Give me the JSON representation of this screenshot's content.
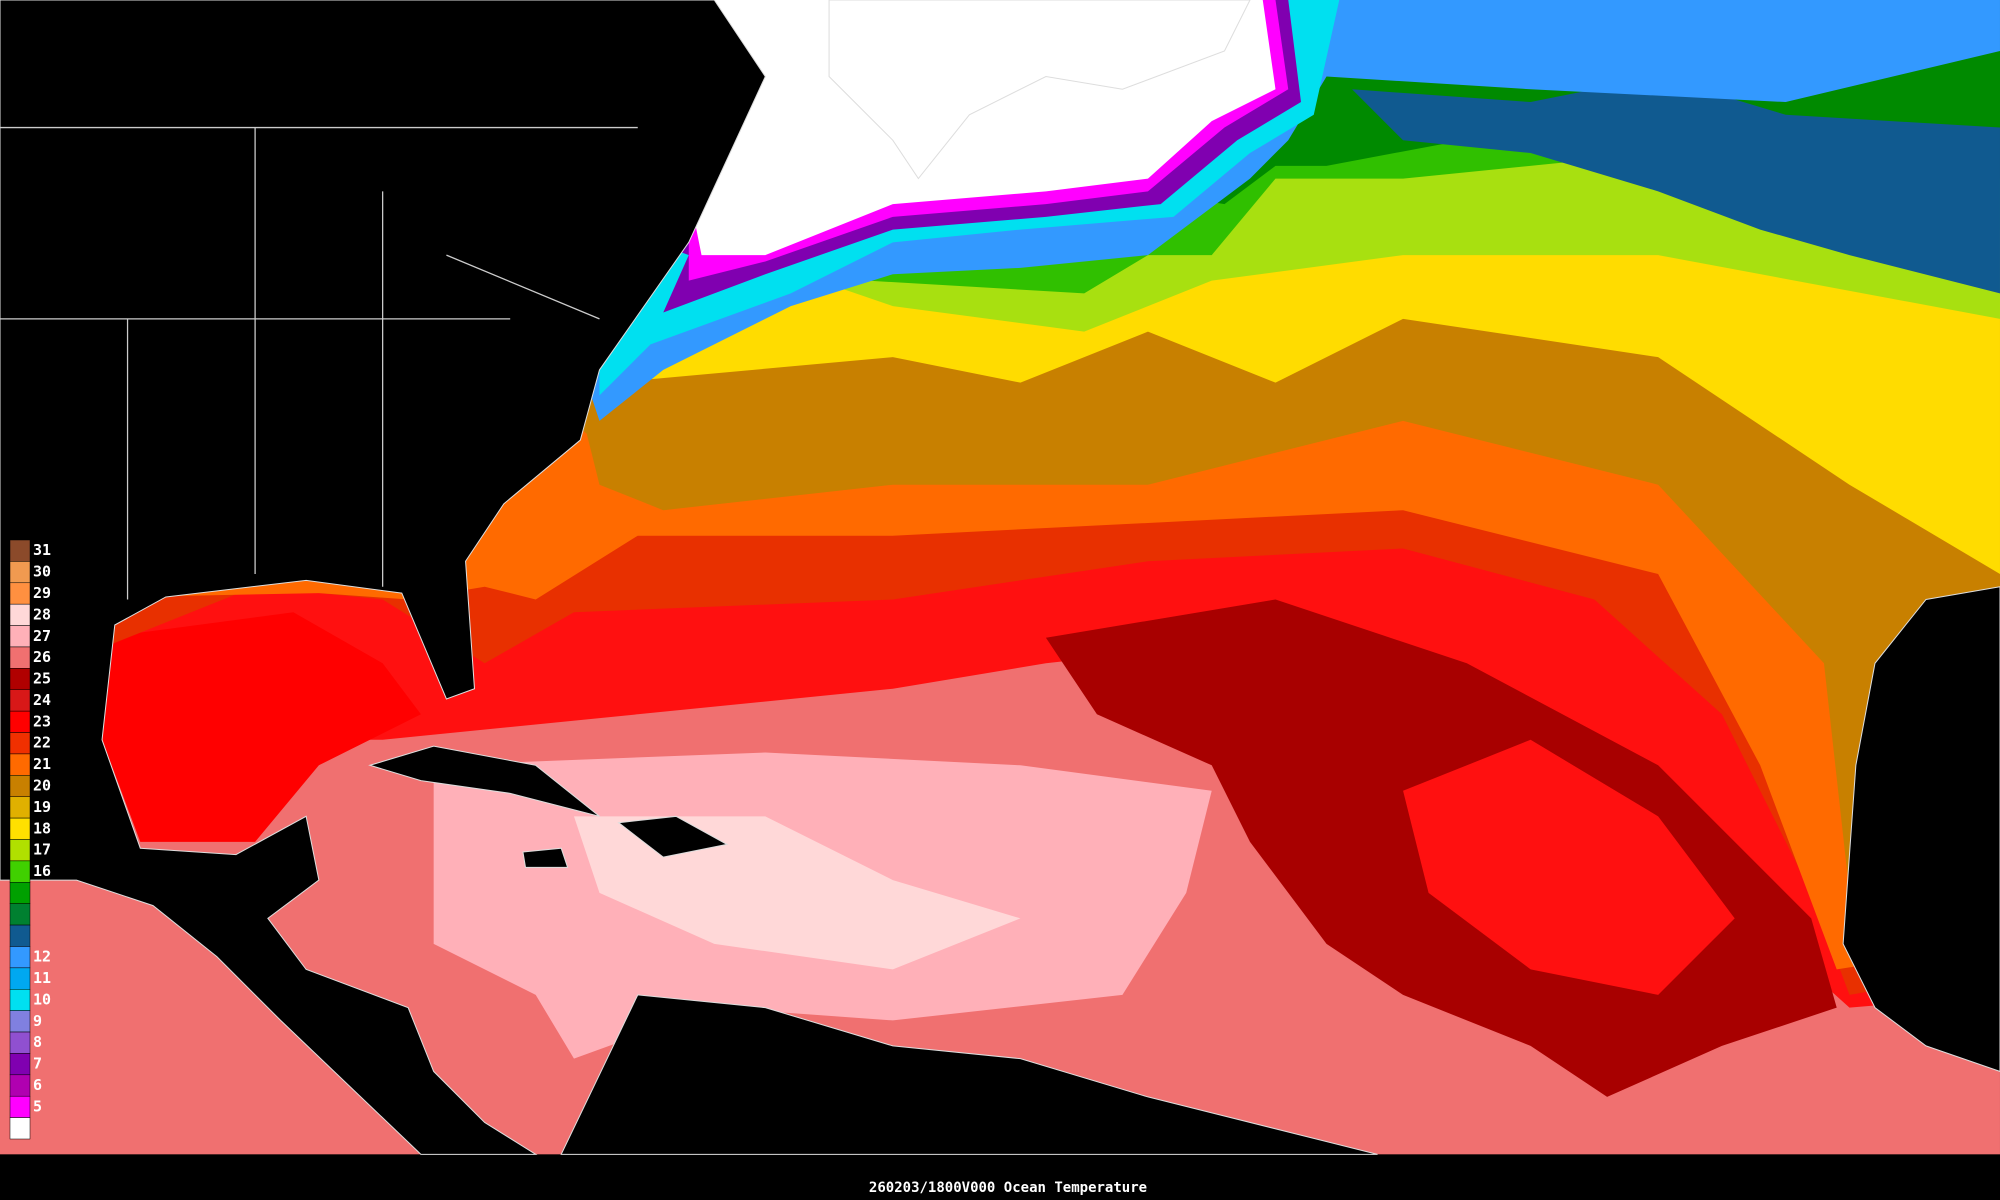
{
  "legend": {
    "levels": [
      {
        "label": "31",
        "color": "#8b4a2a"
      },
      {
        "label": "30",
        "color": "#f09a50"
      },
      {
        "label": "29",
        "color": "#ff9040"
      },
      {
        "label": "28",
        "color": "#ffd8d8"
      },
      {
        "label": "27",
        "color": "#ffb0b8"
      },
      {
        "label": "26",
        "color": "#f07070"
      },
      {
        "label": "25",
        "color": "#b00000"
      },
      {
        "label": "24",
        "color": "#d81818"
      },
      {
        "label": "23",
        "color": "#ff0000"
      },
      {
        "label": "22",
        "color": "#f03000"
      },
      {
        "label": "21",
        "color": "#ff6a00"
      },
      {
        "label": "20",
        "color": "#c88000"
      },
      {
        "label": "19",
        "color": "#e0b000"
      },
      {
        "label": "18",
        "color": "#ffe000"
      },
      {
        "label": "17",
        "color": "#b0e000"
      },
      {
        "label": "16",
        "color": "#40d000"
      },
      {
        "color": "#00a000"
      },
      {
        "color": "#008030"
      },
      {
        "color": "#105a90"
      },
      {
        "label": "12",
        "color": "#3399ff"
      },
      {
        "label": "11",
        "color": "#00a8f0"
      },
      {
        "label": "10",
        "color": "#00e0f0"
      },
      {
        "label": "9",
        "color": "#8080e0"
      },
      {
        "label": "8",
        "color": "#9050d0"
      },
      {
        "label": "7",
        "color": "#8000b0"
      },
      {
        "label": "6",
        "color": "#b000b0"
      },
      {
        "label": "5",
        "color": "#ff00ff"
      },
      {
        "color": "#ffffff"
      }
    ]
  },
  "caption": "260203/1800V000 Ocean Temperature"
}
